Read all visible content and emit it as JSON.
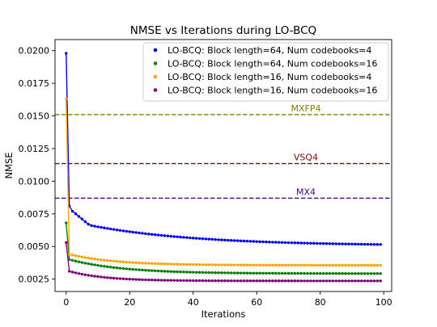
{
  "chart_data": {
    "type": "scatter",
    "title": "NMSE vs Iterations during LO-BCQ",
    "xlabel": "Iterations",
    "ylabel": "NMSE",
    "xlim": [
      -3.5,
      102.5
    ],
    "ylim": [
      0.00155,
      0.02085
    ],
    "xticks": [
      0,
      20,
      40,
      60,
      80,
      100
    ],
    "yticks": [
      0.0025,
      0.005,
      0.0075,
      0.01,
      0.0125,
      0.015,
      0.0175,
      0.02
    ],
    "ytick_labels": [
      "0.0025",
      "0.0050",
      "0.0075",
      "0.0100",
      "0.0125",
      "0.0150",
      "0.0175",
      "0.0200"
    ],
    "grid": false,
    "legend_position": "top-right",
    "iterations": 100,
    "series": [
      {
        "name": "LO-BCQ: Block length=64, Num codebooks=4",
        "color": "#0000ff",
        "start": 0.0198,
        "second": 0.0081,
        "floor": 0.00505,
        "early": [
          0.0079,
          0.0077,
          0.0075,
          0.0073,
          0.0071,
          0.0069,
          0.0067,
          0.0066,
          0.00655
        ],
        "decay": 0.03
      },
      {
        "name": "LO-BCQ: Block length=64, Num codebooks=16",
        "color": "#008000",
        "start": 0.0068,
        "second": 0.004,
        "floor": 0.00292,
        "early": [],
        "decay": 0.06
      },
      {
        "name": "LO-BCQ: Block length=16, Num codebooks=4",
        "color": "#ffa500",
        "start": 0.0163,
        "second": 0.0044,
        "floor": 0.00356,
        "early": [],
        "decay": 0.07
      },
      {
        "name": "LO-BCQ: Block length=16, Num codebooks=16",
        "color": "#800080",
        "start": 0.0053,
        "second": 0.0031,
        "floor": 0.00236,
        "early": [],
        "decay": 0.09
      }
    ],
    "reference_lines": [
      {
        "label": "MXFP4",
        "value": 0.0151,
        "color": "#808000"
      },
      {
        "label": "VSQ4",
        "value": 0.01135,
        "color": "#8b0000"
      },
      {
        "label": "MX4",
        "value": 0.0087,
        "color": "#4b0082"
      }
    ]
  }
}
